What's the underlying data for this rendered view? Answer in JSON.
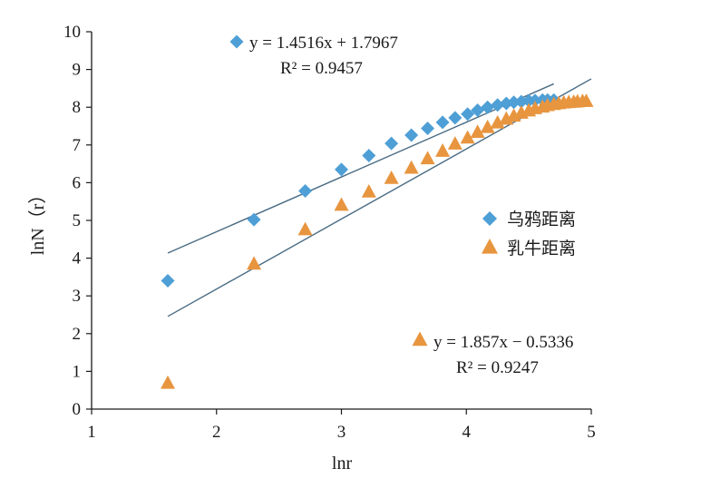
{
  "chart_data": {
    "type": "scatter",
    "xlabel": "lnr",
    "ylabel": "lnN（r）",
    "xlim": [
      1,
      5
    ],
    "ylim": [
      0,
      10
    ],
    "xticks": [
      "1",
      "2",
      "3",
      "4",
      "5"
    ],
    "yticks": [
      "0",
      "1",
      "2",
      "3",
      "4",
      "5",
      "6",
      "7",
      "8",
      "9",
      "10"
    ],
    "grid": false,
    "legend_position": "right",
    "series": [
      {
        "name": "乌鸦距离",
        "marker": "diamond",
        "color": "#4e9fd6",
        "x": [
          1.61,
          2.3,
          2.71,
          3.0,
          3.22,
          3.4,
          3.56,
          3.69,
          3.81,
          3.91,
          4.01,
          4.09,
          4.17,
          4.25,
          4.32,
          4.38,
          4.44,
          4.5,
          4.55,
          4.61,
          4.65,
          4.7
        ],
        "y": [
          3.4,
          5.02,
          5.78,
          6.35,
          6.72,
          7.04,
          7.26,
          7.44,
          7.6,
          7.72,
          7.82,
          7.92,
          8.0,
          8.06,
          8.1,
          8.13,
          8.15,
          8.17,
          8.18,
          8.19,
          8.19,
          8.19
        ],
        "trendline": {
          "slope": 1.4516,
          "intercept": 1.7967,
          "x_range": [
            1.61,
            4.7
          ],
          "label": "y = 1.4516x + 1.7967",
          "r2": "R² = 0.9457"
        }
      },
      {
        "name": "乳牛距离",
        "marker": "triangle",
        "color": "#e8953f",
        "x": [
          1.61,
          2.3,
          2.71,
          3.0,
          3.22,
          3.4,
          3.56,
          3.69,
          3.81,
          3.91,
          4.01,
          4.09,
          4.17,
          4.25,
          4.32,
          4.38,
          4.44,
          4.5,
          4.55,
          4.61,
          4.65,
          4.7,
          4.74,
          4.78,
          4.82,
          4.86,
          4.89,
          4.93,
          4.96
        ],
        "y": [
          0.7,
          3.86,
          4.77,
          5.42,
          5.77,
          6.13,
          6.4,
          6.65,
          6.85,
          7.04,
          7.2,
          7.35,
          7.48,
          7.6,
          7.7,
          7.78,
          7.86,
          7.92,
          7.98,
          8.02,
          8.06,
          8.09,
          8.11,
          8.13,
          8.14,
          8.15,
          8.16,
          8.17,
          8.17
        ],
        "trendline": {
          "slope": 1.857,
          "intercept": -0.5336,
          "x_range": [
            1.61,
            5.0
          ],
          "label": "y = 1.857x − 0.5336",
          "r2": "R² = 0.9247"
        }
      }
    ],
    "trendline_color": "#4a6c84",
    "axis_color": "#1a1a1a"
  }
}
